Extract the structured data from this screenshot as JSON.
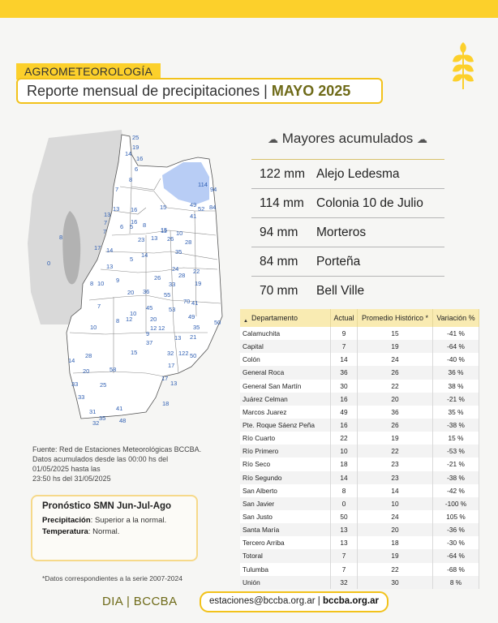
{
  "header": {
    "section_tag": "AGROMETEOROLOGÍA",
    "title_prefix": "Reporte mensual de precipitaciones | ",
    "title_month": "MAYO 2025"
  },
  "colors": {
    "accent": "#fcd02b",
    "brand_olive": "#6e6a18",
    "map_water": "#b8cdf5",
    "station_label": "#2f5fb3"
  },
  "icons": [
    "wheat-icon",
    "rain-cloud-icon",
    "sort-arrow-icon"
  ],
  "mayores": {
    "title": "Mayores acumulados",
    "items": [
      {
        "mm": "122 mm",
        "station": "Alejo Ledesma"
      },
      {
        "mm": "114 mm",
        "station": "Colonia 10 de Julio"
      },
      {
        "mm": "94 mm",
        "station": "Morteros"
      },
      {
        "mm": "84 mm",
        "station": "Porteña"
      },
      {
        "mm": "70 mm",
        "station": "Bell Ville"
      }
    ]
  },
  "table": {
    "headers": [
      "Departamento",
      "Actual",
      "Promedio Histórico *",
      "Variación %"
    ],
    "rows": [
      [
        "Calamuchita",
        "9",
        "15",
        "-41 %"
      ],
      [
        "Capital",
        "7",
        "19",
        "-64 %"
      ],
      [
        "Colón",
        "14",
        "24",
        "-40 %"
      ],
      [
        "General Roca",
        "36",
        "26",
        "36 %"
      ],
      [
        "General San Martín",
        "30",
        "22",
        "38 %"
      ],
      [
        "Juárez Celman",
        "16",
        "20",
        "-21 %"
      ],
      [
        "Marcos Juarez",
        "49",
        "36",
        "35 %"
      ],
      [
        "Pte. Roque Sáenz Peña",
        "16",
        "26",
        "-38 %"
      ],
      [
        "Río Cuarto",
        "22",
        "19",
        "15 %"
      ],
      [
        "Río Primero",
        "10",
        "22",
        "-53 %"
      ],
      [
        "Río Seco",
        "18",
        "23",
        "-21 %"
      ],
      [
        "Río Segundo",
        "14",
        "23",
        "-38 %"
      ],
      [
        "San Alberto",
        "8",
        "14",
        "-42 %"
      ],
      [
        "San Javier",
        "0",
        "10",
        "-100 %"
      ],
      [
        "San Justo",
        "50",
        "24",
        "105 %"
      ],
      [
        "Santa María",
        "13",
        "20",
        "-36 %"
      ],
      [
        "Tercero Arriba",
        "13",
        "18",
        "-30 %"
      ],
      [
        "Totoral",
        "7",
        "19",
        "-64 %"
      ],
      [
        "Tulumba",
        "7",
        "22",
        "-68 %"
      ],
      [
        "Unión",
        "32",
        "30",
        "8 %"
      ]
    ]
  },
  "map_labels": [
    "25",
    "19",
    "14",
    "16",
    "6",
    "8",
    "7",
    "114",
    "94",
    "15",
    "13",
    "13",
    "16",
    "16",
    "7",
    "6",
    "5",
    "8",
    "15",
    "49",
    "52",
    "84",
    "41",
    "8",
    "7",
    "11",
    "10",
    "23",
    "13",
    "26",
    "28",
    "17",
    "14",
    "35",
    "0",
    "5",
    "14",
    "13",
    "24",
    "22",
    "26",
    "28",
    "8",
    "10",
    "9",
    "33",
    "19",
    "20",
    "36",
    "55",
    "7",
    "70",
    "41",
    "45",
    "53",
    "10",
    "8",
    "10",
    "12",
    "20",
    "49",
    "50",
    "12",
    "12",
    "35",
    "9",
    "13",
    "21",
    "37",
    "32",
    "122",
    "50",
    "14",
    "28",
    "15",
    "17",
    "20",
    "58",
    "33",
    "25",
    "13",
    "17",
    "33",
    "18",
    "41",
    "31",
    "35",
    "48",
    "32"
  ],
  "source": {
    "line1": "Fuente: Red de Estaciones Meteorológicas BCCBA.",
    "line2": "Datos acumulados desde las 00:00 hs del",
    "line3": "01/05/2025 hasta las",
    "line4": "23:50 hs del 31/05/2025"
  },
  "forecast": {
    "title": "Pronóstico SMN Jun-Jul-Ago",
    "precip_label": "Precipitación",
    "precip_value": ": Superior a la normal.",
    "temp_label": "Temperatura",
    "temp_value": ": Normal."
  },
  "footnote": "*Datos correspondientes a la serie 2007-2024",
  "footer": {
    "brand": "DIA | BCCBA",
    "email": "estaciones@bccba.org.ar",
    "separator": " | ",
    "site": "bccba.org.ar"
  }
}
